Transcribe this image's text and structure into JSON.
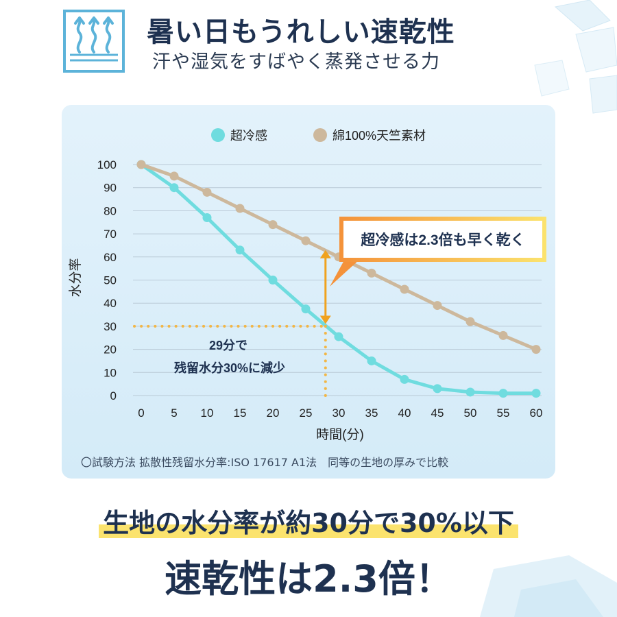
{
  "header": {
    "title": "暑い日もうれしい速乾性",
    "subtitle": "汗や湿気をすばやく蒸発させる力",
    "icon": "evaporation-icon",
    "accent_color": "#5cb3d9"
  },
  "chart_data": {
    "type": "line",
    "x": [
      0,
      5,
      10,
      15,
      20,
      25,
      30,
      35,
      40,
      45,
      50,
      55,
      60
    ],
    "series": [
      {
        "name": "超冷感",
        "color": "#6fdcdf",
        "values": [
          100,
          90,
          77,
          63,
          50,
          37.5,
          25.5,
          15,
          7,
          3,
          1.5,
          1,
          1
        ]
      },
      {
        "name": "綿100%天竺素材",
        "color": "#cdb89c",
        "values": [
          100,
          95,
          88,
          81,
          74,
          67,
          60,
          53,
          46,
          39,
          32,
          26,
          20
        ]
      }
    ],
    "xticks": [
      "0",
      "5",
      "10",
      "15",
      "20",
      "25",
      "30",
      "35",
      "40",
      "45",
      "50",
      "55",
      "60"
    ],
    "yticks": [
      "0",
      "10",
      "20",
      "30",
      "40",
      "50",
      "60",
      "70",
      "80",
      "90",
      "100"
    ],
    "xlabel": "時間(分)",
    "ylabel": "水分率",
    "xlim": [
      0,
      60
    ],
    "ylim": [
      0,
      100
    ],
    "grid": true,
    "legend_position": "top",
    "annotations": {
      "callout": "超冷感は2.3倍も早く乾く",
      "note_line1": "29分で",
      "note_line2": "残留水分30%に減少",
      "marker_x": 28,
      "marker_y": 30,
      "arrow_color": "#f0a21e"
    },
    "footnote": "〇試験方法 拡散性残留水分率:ISO 17617 A1法　同等の生地の厚みで比較"
  },
  "conclusion": {
    "line1": "生地の水分率が約30分で30%以下",
    "line2": "速乾性は2.3倍！",
    "highlight_color": "#fbe36e"
  }
}
